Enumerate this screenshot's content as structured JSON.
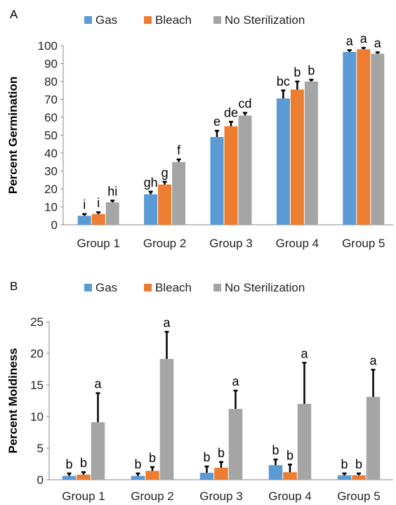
{
  "chart_data": [
    {
      "panel": "A",
      "type": "bar",
      "categories": [
        "Group 1",
        "Group 2",
        "Group 3",
        "Group 4",
        "Group 5"
      ],
      "ylabel": "Percent Germination",
      "xlabel": "",
      "ylim": [
        0,
        100
      ],
      "yticks": [
        0,
        10,
        20,
        30,
        40,
        50,
        60,
        70,
        80,
        90,
        100
      ],
      "grid": false,
      "legend_position": "top",
      "series": [
        {
          "name": "Gas",
          "color": "#5b9bd5",
          "values": [
            5,
            17,
            49,
            70.5,
            96.5
          ],
          "errors": [
            1,
            1.5,
            3.5,
            4.5,
            1
          ],
          "letters": [
            "i",
            "gh",
            "e",
            "bc",
            "a"
          ]
        },
        {
          "name": "Bleach",
          "color": "#ed7d31",
          "values": [
            6,
            22.5,
            55,
            75.5,
            98
          ],
          "errors": [
            1,
            1.5,
            2.5,
            4.5,
            0.8
          ],
          "letters": [
            "i",
            "g",
            "de",
            "b",
            "a"
          ]
        },
        {
          "name": "No Sterilization",
          "color": "#a5a5a5",
          "values": [
            12.5,
            35,
            61,
            80,
            95.5
          ],
          "errors": [
            1,
            1.5,
            1.5,
            1,
            0.8
          ],
          "letters": [
            "hi",
            "f",
            "cd",
            "b",
            "a"
          ]
        }
      ]
    },
    {
      "panel": "B",
      "type": "bar",
      "categories": [
        "Group 1",
        "Group 2",
        "Group 3",
        "Group 4",
        "Group 5"
      ],
      "ylabel": "Percent Moldiness",
      "xlabel": "",
      "ylim": [
        0,
        25
      ],
      "yticks": [
        0,
        5,
        10,
        15,
        20,
        25
      ],
      "grid": false,
      "legend_position": "top",
      "series": [
        {
          "name": "Gas",
          "color": "#5b9bd5",
          "values": [
            0.6,
            0.6,
            1.1,
            2.3,
            0.7
          ],
          "errors": [
            0.4,
            0.4,
            1.0,
            0.9,
            0.3
          ],
          "letters": [
            "b",
            "b",
            "b",
            "b",
            "b"
          ]
        },
        {
          "name": "Bleach",
          "color": "#ed7d31",
          "values": [
            0.8,
            1.4,
            1.9,
            1.2,
            0.7
          ],
          "errors": [
            0.4,
            0.6,
            0.9,
            1.2,
            0.3
          ],
          "letters": [
            "b",
            "b",
            "b",
            "b",
            "b"
          ]
        },
        {
          "name": "No Sterilization",
          "color": "#a5a5a5",
          "values": [
            9.1,
            19.1,
            11.2,
            12.0,
            13.1
          ],
          "errors": [
            4.6,
            4.3,
            2.9,
            6.5,
            4.3
          ],
          "letters": [
            "a",
            "a",
            "a",
            "a",
            "a"
          ]
        }
      ]
    }
  ]
}
